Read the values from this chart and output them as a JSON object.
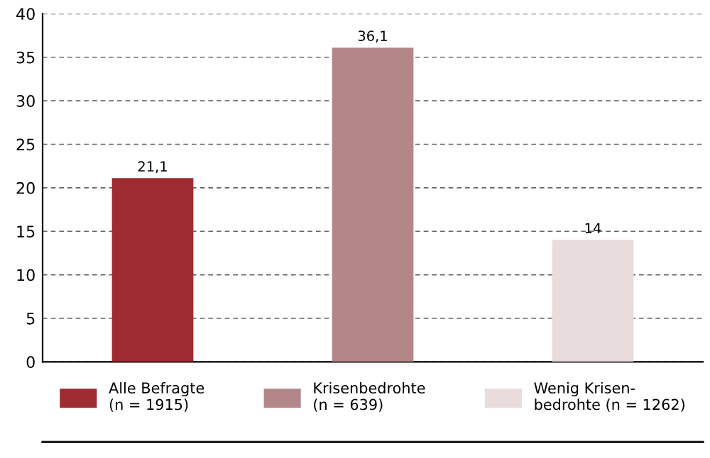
{
  "chart_data": {
    "type": "bar",
    "categories": [
      null,
      null,
      null
    ],
    "series": [
      {
        "name": "Alle Befragte\n(n = 1915)",
        "color": "#9e2b30",
        "values": [
          21.1,
          null,
          null
        ],
        "value_labels": [
          "21,1",
          null,
          null
        ]
      },
      {
        "name": "Krisenbedrohte\n(n = 639)",
        "color": "#b3878a",
        "values": [
          null,
          36.1,
          null
        ],
        "value_labels": [
          null,
          "36,1",
          null
        ]
      },
      {
        "name": "Wenig Krisen-\nbedrohte (n = 1262)",
        "color": "#e9dcdc",
        "values": [
          null,
          null,
          14
        ],
        "value_labels": [
          null,
          null,
          "14"
        ]
      }
    ],
    "ylim": [
      0,
      40
    ],
    "yticks": [
      0,
      5,
      10,
      15,
      20,
      25,
      30,
      35,
      40
    ],
    "grid": "y",
    "legend": "bottom"
  }
}
